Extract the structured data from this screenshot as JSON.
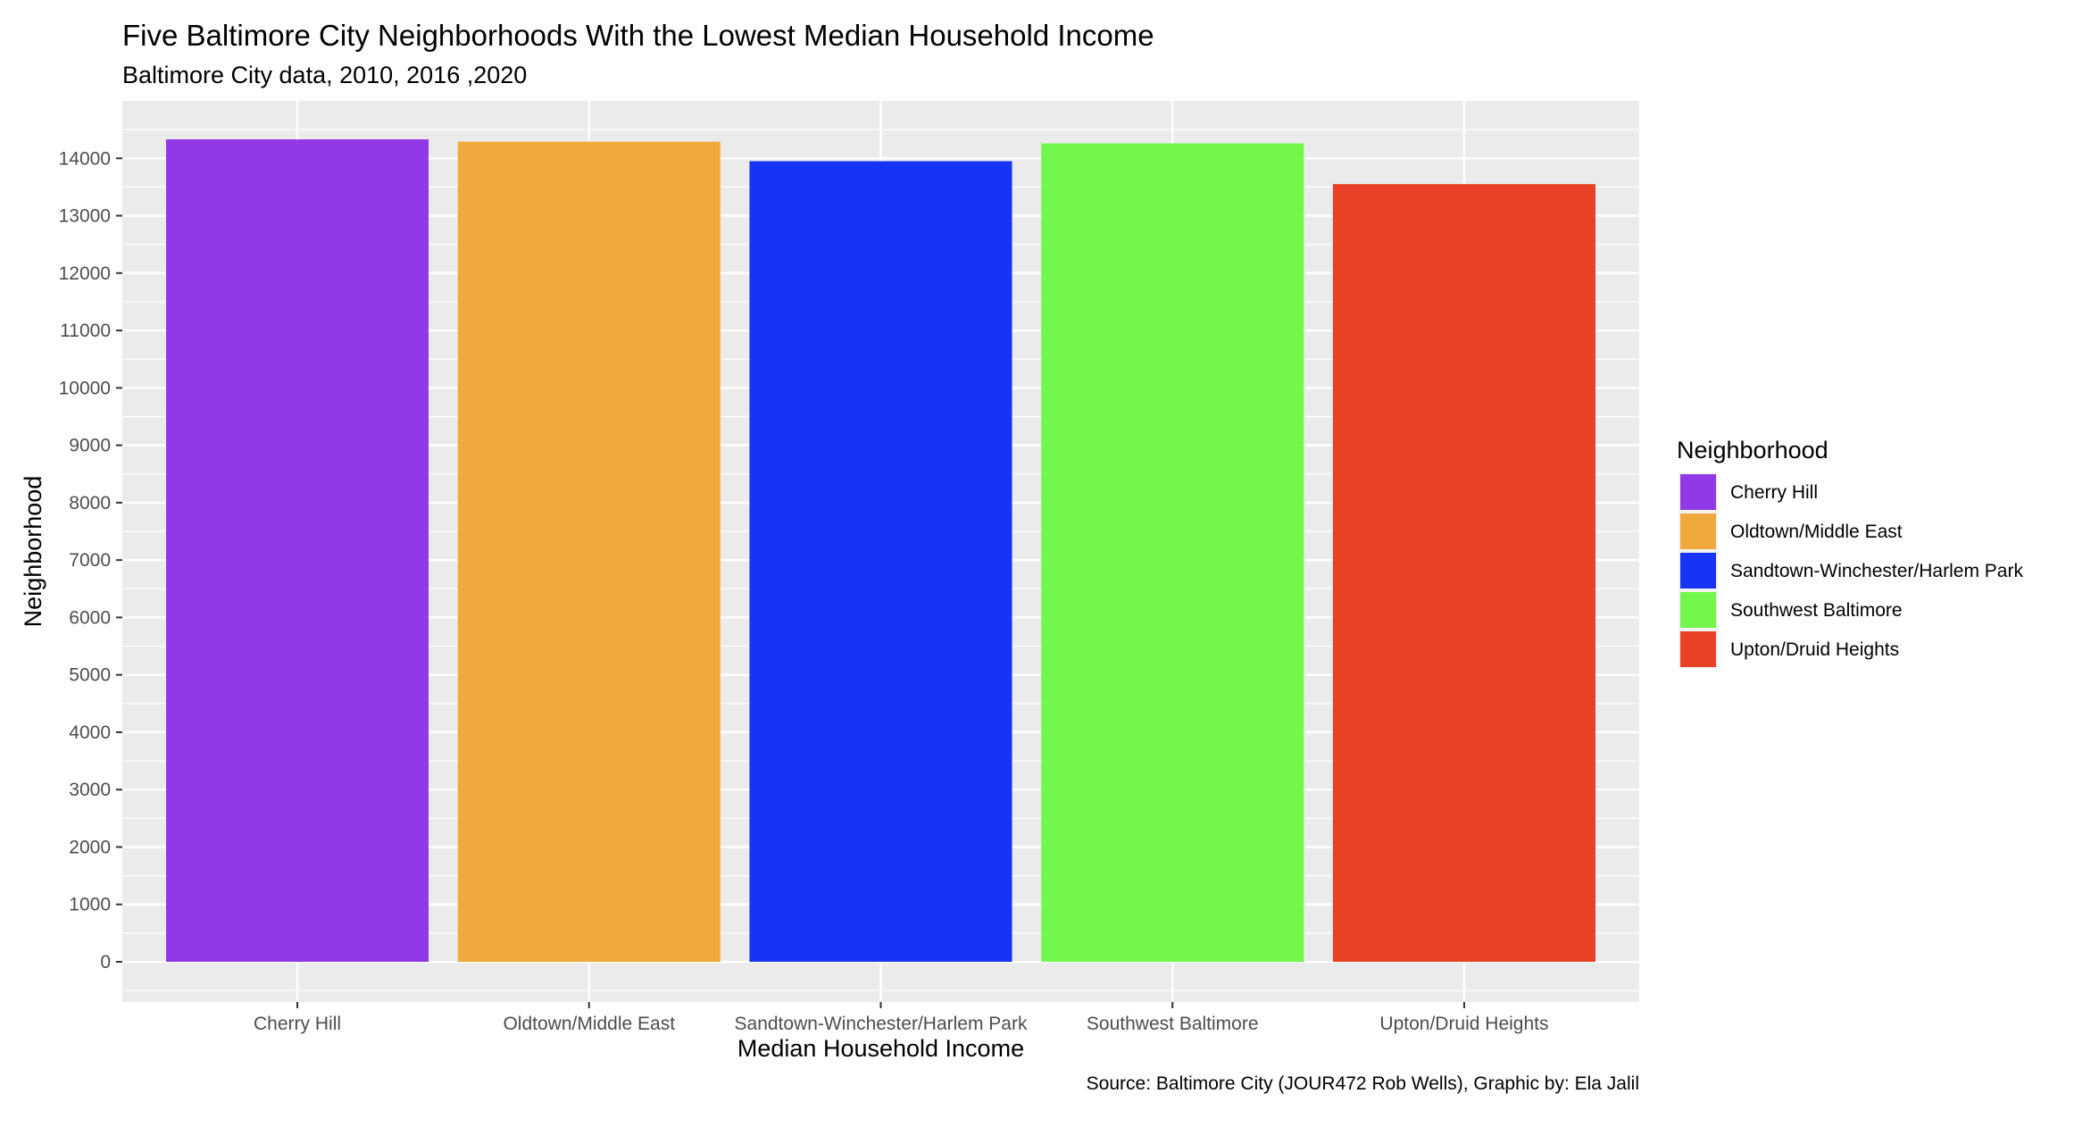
{
  "chart_data": {
    "type": "bar",
    "title": "Five Baltimore City Neighborhoods With the Lowest Median Household Income",
    "subtitle": "Baltimore City data, 2010, 2016 ,2020",
    "xlabel": "Median Household Income",
    "ylabel": "Neighborhood",
    "caption": "Source: Baltimore City (JOUR472 Rob Wells), Graphic by: Ela Jalil",
    "categories": [
      "Cherry Hill",
      "Oldtown/Middle East",
      "Sandtown-Winchester/Harlem Park",
      "Southwest Baltimore",
      "Upton/Druid Heights"
    ],
    "values": [
      14330,
      14290,
      13950,
      14260,
      13550
    ],
    "colors": [
      "#9139E6",
      "#F0A93C",
      "#1733F5",
      "#73F74C",
      "#E84126"
    ],
    "ylim": [
      -700,
      15000
    ],
    "yticks": [
      0,
      1000,
      2000,
      3000,
      4000,
      5000,
      6000,
      7000,
      8000,
      9000,
      10000,
      11000,
      12000,
      13000,
      14000
    ],
    "grid": true,
    "panel_background": "#EBEBEB",
    "legend": {
      "title": "Neighborhood",
      "position": "right",
      "entries": [
        "Cherry Hill",
        "Oldtown/Middle East",
        "Sandtown-Winchester/Harlem Park",
        "Southwest Baltimore",
        "Upton/Druid Heights"
      ]
    }
  }
}
